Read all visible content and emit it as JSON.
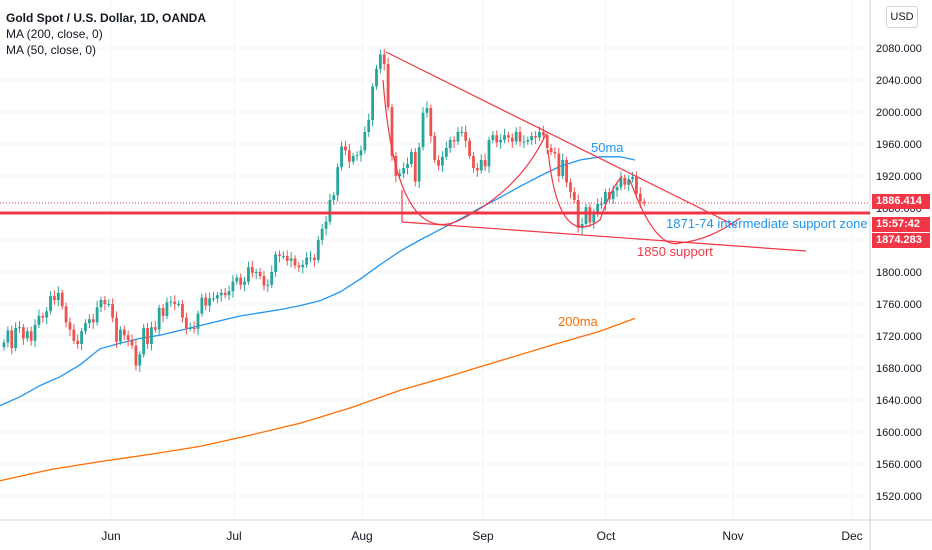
{
  "header": {
    "title": "Gold Spot / U.S. Dollar, 1D, OANDA",
    "ma200_label": "MA (200, close, 0)",
    "ma50_label": "MA (50, close, 0)"
  },
  "currency_button": "USD",
  "price_tags": {
    "last_price": "1886.414",
    "countdown": "15:57:42",
    "support_price": "1874.283"
  },
  "colors": {
    "bull": "#26a69a",
    "bear": "#ef5350",
    "ma50": "#2196f3",
    "ma200": "#ff6d00",
    "drawing": "#f23645",
    "axis_text": "#131722",
    "grid": "#f0f3fa"
  },
  "annotations": {
    "ma50_text": "50ma",
    "ma200_text": "200ma",
    "zone_text": "1871-74 intermediate support zone",
    "support_text": "1850 support"
  },
  "chart_data": {
    "type": "candlestick",
    "title": "Gold Spot / U.S. Dollar, 1D, OANDA",
    "xlabel": "",
    "ylabel": "",
    "ylim": [
      1495,
      2120
    ],
    "grid": true,
    "y_ticks": [
      "1520.000",
      "1560.000",
      "1600.000",
      "1640.000",
      "1680.000",
      "1720.000",
      "1760.000",
      "1800.000",
      "1840.000",
      "1880.000",
      "1920.000",
      "1960.000",
      "2000.000",
      "2040.000",
      "2080.000"
    ],
    "x_ticks": [
      "Jun",
      "Jul",
      "Aug",
      "Sep",
      "Oct",
      "Nov",
      "Dec"
    ],
    "candles_close": [
      1712,
      1727,
      1705,
      1730,
      1731,
      1717,
      1726,
      1714,
      1734,
      1745,
      1743,
      1751,
      1770,
      1765,
      1774,
      1757,
      1737,
      1728,
      1714,
      1710,
      1726,
      1736,
      1741,
      1737,
      1756,
      1765,
      1760,
      1760,
      1743,
      1713,
      1728,
      1721,
      1715,
      1708,
      1683,
      1697,
      1730,
      1710,
      1731,
      1728,
      1755,
      1745,
      1762,
      1763,
      1760,
      1760,
      1743,
      1730,
      1730,
      1729,
      1748,
      1768,
      1758,
      1767,
      1767,
      1771,
      1774,
      1771,
      1776,
      1788,
      1793,
      1784,
      1788,
      1806,
      1799,
      1800,
      1795,
      1783,
      1784,
      1800,
      1822,
      1820,
      1820,
      1814,
      1817,
      1808,
      1806,
      1809,
      1818,
      1818,
      1815,
      1840,
      1854,
      1863,
      1890,
      1896,
      1931,
      1957,
      1952,
      1938,
      1945,
      1946,
      1952,
      1975,
      1990,
      2032,
      2054,
      2072,
      2060,
      2006,
      1945,
      1920,
      1923,
      1930,
      1935,
      1950,
      1913,
      1956,
      1999,
      2005,
      1970,
      1940,
      1933,
      1944,
      1955,
      1965,
      1963,
      1975,
      1975,
      1964,
      1945,
      1930,
      1927,
      1940,
      1932,
      1965,
      1971,
      1962,
      1965,
      1971,
      1968,
      1963,
      1975,
      1963,
      1963,
      1965,
      1970,
      1968,
      1975,
      1971,
      1955,
      1950,
      1948,
      1920,
      1940,
      1912,
      1900,
      1890,
      1855,
      1860,
      1881,
      1862,
      1873,
      1885,
      1885,
      1900,
      1891,
      1902,
      1906,
      1918,
      1909,
      1916,
      1919,
      1898,
      1888,
      1886
    ],
    "ma50_series": [
      {
        "x": 0,
        "y": 1633
      },
      {
        "x": 20,
        "y": 1644
      },
      {
        "x": 40,
        "y": 1658
      },
      {
        "x": 60,
        "y": 1669
      },
      {
        "x": 80,
        "y": 1684
      },
      {
        "x": 100,
        "y": 1704
      },
      {
        "x": 120,
        "y": 1711
      },
      {
        "x": 140,
        "y": 1717
      },
      {
        "x": 160,
        "y": 1721
      },
      {
        "x": 180,
        "y": 1727
      },
      {
        "x": 200,
        "y": 1733
      },
      {
        "x": 220,
        "y": 1739
      },
      {
        "x": 240,
        "y": 1745
      },
      {
        "x": 260,
        "y": 1749
      },
      {
        "x": 280,
        "y": 1753
      },
      {
        "x": 300,
        "y": 1758
      },
      {
        "x": 320,
        "y": 1764
      },
      {
        "x": 340,
        "y": 1775
      },
      {
        "x": 360,
        "y": 1791
      },
      {
        "x": 380,
        "y": 1809
      },
      {
        "x": 400,
        "y": 1826
      },
      {
        "x": 420,
        "y": 1840
      },
      {
        "x": 440,
        "y": 1853
      },
      {
        "x": 460,
        "y": 1866
      },
      {
        "x": 480,
        "y": 1880
      },
      {
        "x": 500,
        "y": 1893
      },
      {
        "x": 520,
        "y": 1907
      },
      {
        "x": 540,
        "y": 1920
      },
      {
        "x": 560,
        "y": 1932
      },
      {
        "x": 580,
        "y": 1940
      },
      {
        "x": 600,
        "y": 1944
      },
      {
        "x": 620,
        "y": 1944
      },
      {
        "x": 635,
        "y": 1940
      }
    ],
    "ma200_series": [
      {
        "x": 0,
        "y": 1539
      },
      {
        "x": 50,
        "y": 1553
      },
      {
        "x": 100,
        "y": 1563
      },
      {
        "x": 150,
        "y": 1572
      },
      {
        "x": 200,
        "y": 1582
      },
      {
        "x": 250,
        "y": 1596
      },
      {
        "x": 300,
        "y": 1611
      },
      {
        "x": 350,
        "y": 1630
      },
      {
        "x": 400,
        "y": 1652
      },
      {
        "x": 450,
        "y": 1670
      },
      {
        "x": 500,
        "y": 1689
      },
      {
        "x": 550,
        "y": 1708
      },
      {
        "x": 600,
        "y": 1726
      },
      {
        "x": 635,
        "y": 1742
      }
    ]
  }
}
